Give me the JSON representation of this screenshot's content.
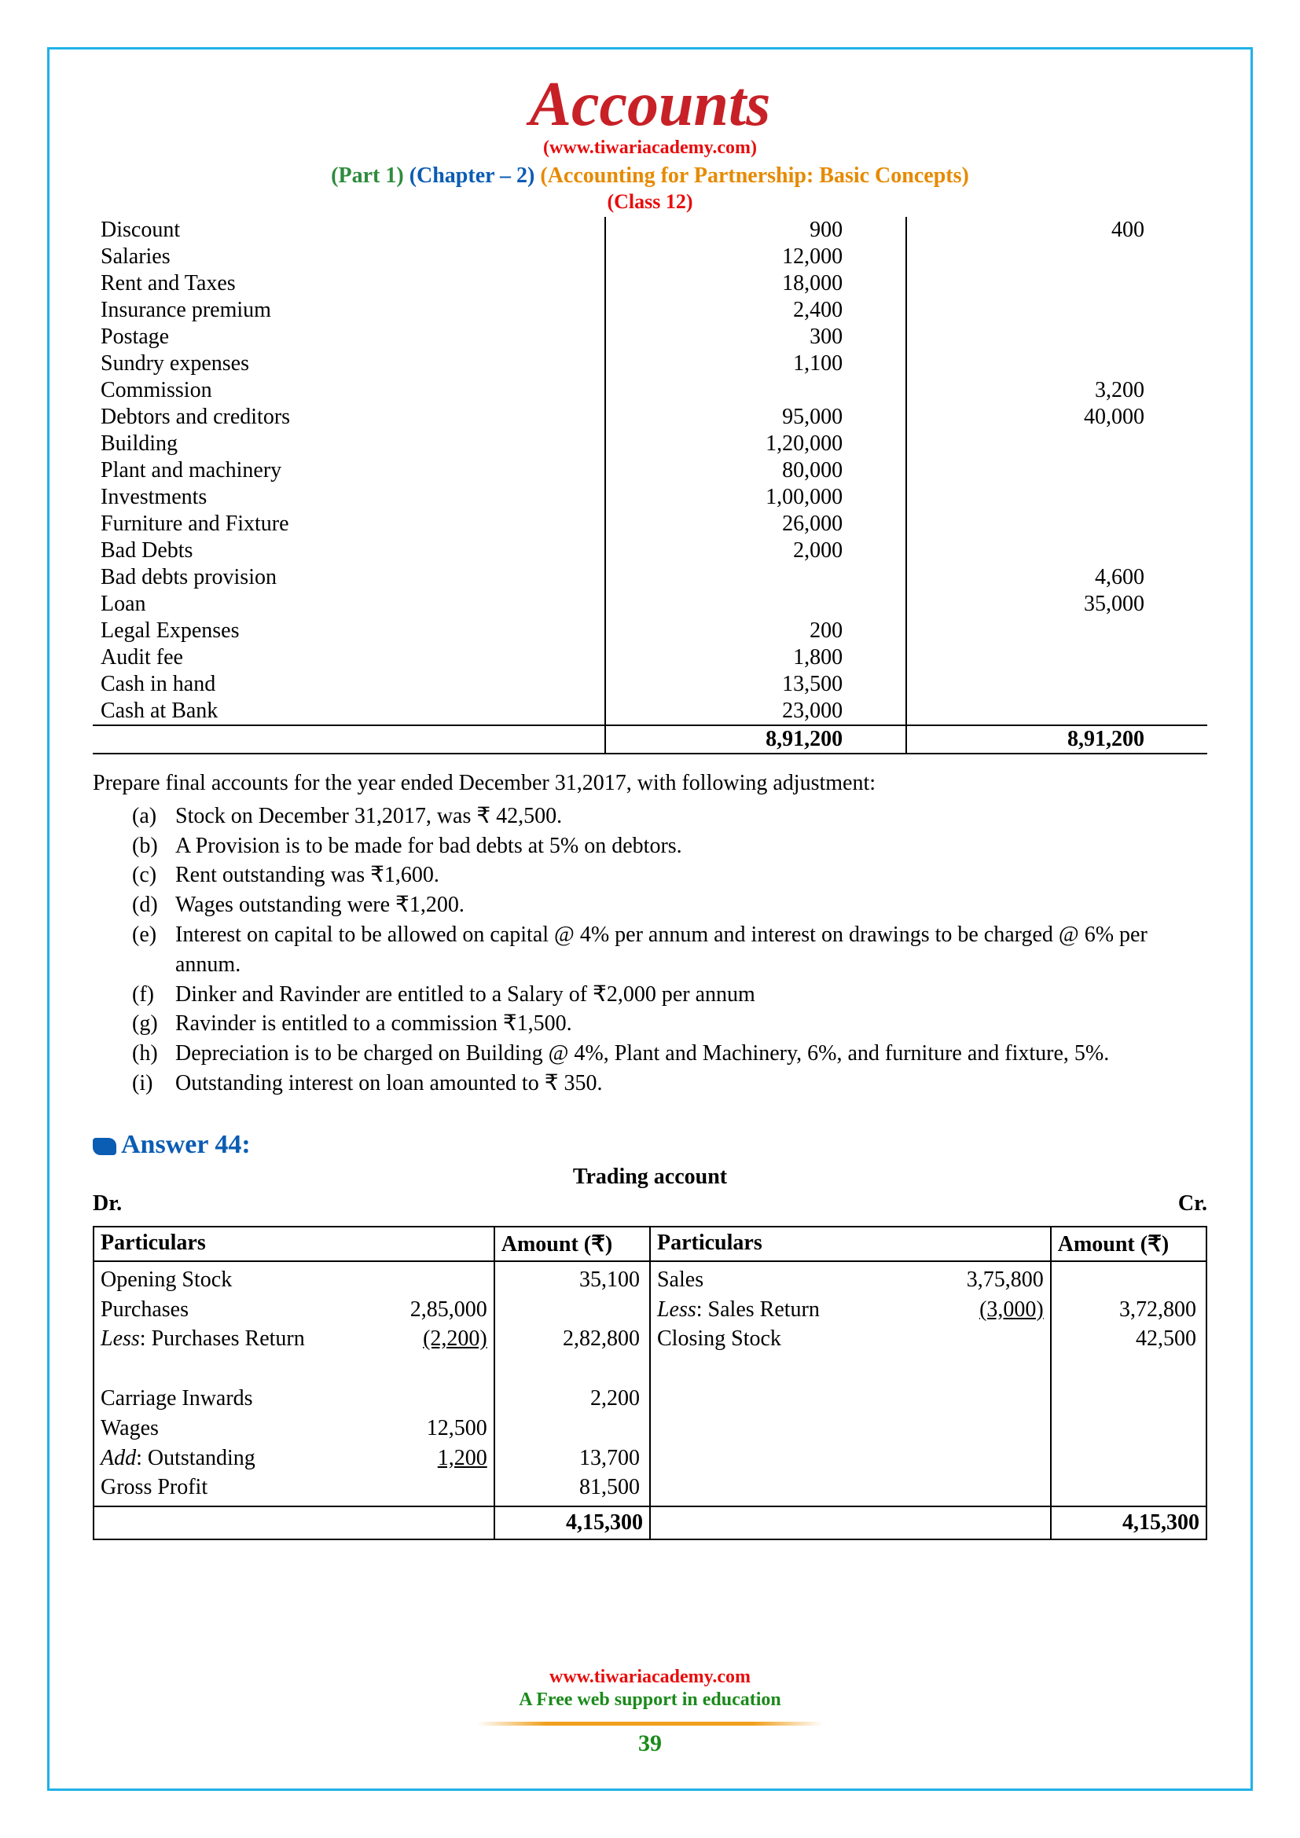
{
  "header": {
    "title": "Accounts",
    "url": "(www.tiwariacademy.com)",
    "part": "(Part 1)",
    "chapter": "(Chapter – 2)",
    "chapter_title": "(Accounting for Partnership: Basic Concepts)",
    "class": "(Class 12)"
  },
  "trial_balance": {
    "rows": [
      {
        "name": "Discount",
        "dr": "900",
        "cr": "400"
      },
      {
        "name": "Salaries",
        "dr": "12,000",
        "cr": ""
      },
      {
        "name": "Rent and Taxes",
        "dr": "18,000",
        "cr": ""
      },
      {
        "name": "Insurance premium",
        "dr": "2,400",
        "cr": ""
      },
      {
        "name": "Postage",
        "dr": "300",
        "cr": ""
      },
      {
        "name": "Sundry expenses",
        "dr": "1,100",
        "cr": ""
      },
      {
        "name": "Commission",
        "dr": "",
        "cr": "3,200"
      },
      {
        "name": "Debtors and creditors",
        "dr": "95,000",
        "cr": "40,000"
      },
      {
        "name": "Building",
        "dr": "1,20,000",
        "cr": ""
      },
      {
        "name": "Plant and machinery",
        "dr": "80,000",
        "cr": ""
      },
      {
        "name": "Investments",
        "dr": "1,00,000",
        "cr": ""
      },
      {
        "name": "Furniture and Fixture",
        "dr": "26,000",
        "cr": ""
      },
      {
        "name": "Bad Debts",
        "dr": "2,000",
        "cr": ""
      },
      {
        "name": "Bad debts provision",
        "dr": "",
        "cr": "4,600"
      },
      {
        "name": "Loan",
        "dr": "",
        "cr": "35,000"
      },
      {
        "name": "Legal Expenses",
        "dr": "200",
        "cr": ""
      },
      {
        "name": "Audit fee",
        "dr": "1,800",
        "cr": ""
      },
      {
        "name": "Cash in hand",
        "dr": "13,500",
        "cr": ""
      },
      {
        "name": "Cash at Bank",
        "dr": "23,000",
        "cr": ""
      }
    ],
    "total_dr": "8,91,200",
    "total_cr": "8,91,200"
  },
  "question": "Prepare final accounts for  the year ended December 31,2017, with following adjustment:",
  "adjustments": [
    {
      "m": "(a)",
      "t": "Stock on December 31,2017, was ₹ 42,500."
    },
    {
      "m": "(b)",
      "t": "A Provision is to be made for bad debts at 5% on debtors."
    },
    {
      "m": "(c)",
      "t": "Rent outstanding was ₹1,600."
    },
    {
      "m": "(d)",
      "t": "Wages outstanding were ₹1,200."
    },
    {
      "m": "(e)",
      "t": "Interest on capital to be allowed on capital @ 4% per annum and interest on drawings to be charged @ 6% per annum."
    },
    {
      "m": "(f)",
      "t": "Dinker and Ravinder are entitled to a Salary of ₹2,000 per annum"
    },
    {
      "m": "(g)",
      "t": "Ravinder is entitled to a commission ₹1,500."
    },
    {
      "m": "(h)",
      "t": "Depreciation is to be charged on Building @ 4%, Plant and Machinery, 6%, and furniture and fixture, 5%."
    },
    {
      "m": "(i)",
      "t": "Outstanding interest on loan amounted to ₹ 350."
    }
  ],
  "answer_label": "Answer 44:",
  "trading": {
    "title": "Trading account",
    "dr": "Dr.",
    "cr": "Cr.",
    "head_particulars": "Particulars",
    "head_amount": "Amount (₹)",
    "left": {
      "r1_lbl": "Opening Stock",
      "r1_amt": "35,100",
      "r2_lbl": "Purchases",
      "r2_num": "2,85,000",
      "r3_lbl_i": "Less",
      "r3_lbl": ": Purchases Return",
      "r3_num": "(2,200)",
      "r3_amt": "2,82,800",
      "r4_lbl": "Carriage Inwards",
      "r4_amt": "2,200",
      "r5_lbl": "Wages",
      "r5_num": "12,500",
      "r6_lbl_i": "Add",
      "r6_lbl": ": Outstanding",
      "r6_num": "1,200",
      "r6_amt": "13,700",
      "r7_lbl": "Gross Profit",
      "r7_amt": "81,500"
    },
    "right": {
      "r1_lbl": "Sales",
      "r1_num": "3,75,800",
      "r2_lbl_i": "Less",
      "r2_lbl": ": Sales Return",
      "r2_num": "(3,000)",
      "r2_amt": "3,72,800",
      "r3_lbl": "Closing Stock",
      "r3_amt": "42,500"
    },
    "total": "4,15,300"
  },
  "footer": {
    "url": "www.tiwariacademy.com",
    "tag": "A Free web support in education",
    "page": "39"
  },
  "colors": {
    "border": "#1fb1e8",
    "title": "#c72127",
    "red": "#e80c0c",
    "green": "#2e8b3d",
    "blue": "#0b5cb3",
    "orange": "#e68a00",
    "footer_green": "#1a8a1a"
  }
}
